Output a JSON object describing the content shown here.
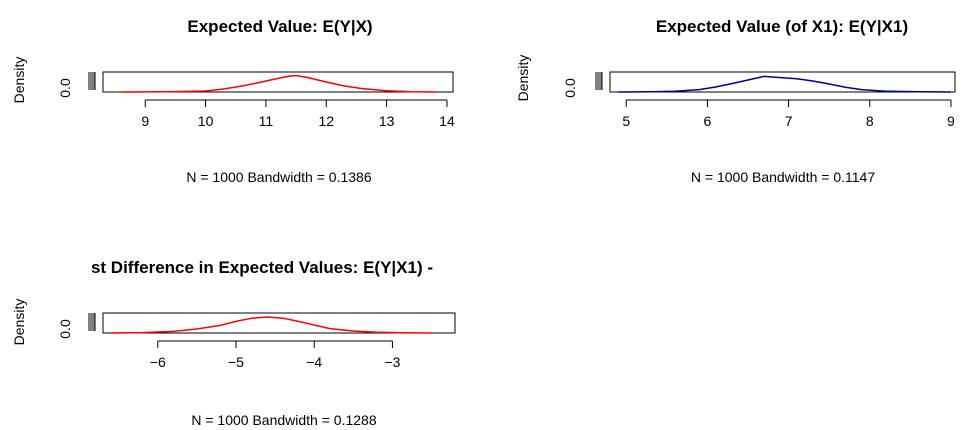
{
  "chart_data": [
    {
      "type": "line",
      "title": "Expected Value: E(Y|X)",
      "xlabel": "N = 1000   Bandwidth = 0.1386",
      "ylabel": "Density",
      "y_ticks": [
        "0.0"
      ],
      "x_ticks": [
        9,
        10,
        11,
        12,
        13,
        14
      ],
      "xlim": [
        8.3,
        14.1
      ],
      "ylim": [
        0,
        1.0
      ],
      "color": "#ff0000",
      "series": [
        {
          "x": [
            8.6,
            9.0,
            9.5,
            10.0,
            10.3,
            10.6,
            10.9,
            11.2,
            11.4,
            11.5,
            11.7,
            12.0,
            12.3,
            12.6,
            13.0,
            13.4,
            13.8
          ],
          "y": [
            0.0,
            0.005,
            0.02,
            0.05,
            0.15,
            0.3,
            0.48,
            0.68,
            0.8,
            0.82,
            0.72,
            0.5,
            0.3,
            0.17,
            0.06,
            0.01,
            0.0
          ]
        }
      ]
    },
    {
      "type": "line",
      "title": "Expected Value (of X1): E(Y|X1)",
      "xlabel": "N = 1000   Bandwidth = 0.1147",
      "ylabel": "Density",
      "y_ticks": [
        "0.0"
      ],
      "x_ticks": [
        5,
        6,
        7,
        8,
        9
      ],
      "xlim": [
        4.8,
        9.05
      ],
      "ylim": [
        0,
        1.0
      ],
      "color": "#00008b",
      "series": [
        {
          "x": [
            4.9,
            5.3,
            5.6,
            5.9,
            6.1,
            6.3,
            6.5,
            6.7,
            6.9,
            7.1,
            7.3,
            7.5,
            7.7,
            7.9,
            8.2,
            8.6,
            9.0
          ],
          "y": [
            0.0,
            0.01,
            0.04,
            0.12,
            0.25,
            0.42,
            0.6,
            0.78,
            0.72,
            0.66,
            0.55,
            0.4,
            0.24,
            0.12,
            0.04,
            0.01,
            0.0
          ]
        }
      ]
    },
    {
      "type": "line",
      "title": "st Difference in Expected Values: E(Y|X1) -",
      "xlabel": "N = 1000   Bandwidth = 0.1288",
      "ylabel": "Density",
      "y_ticks": [
        "0.0"
      ],
      "x_ticks": [
        -6,
        -5,
        -4,
        -3
      ],
      "xlim": [
        -6.7,
        -2.2
      ],
      "ylim": [
        0,
        1.0
      ],
      "color": "#ff0000",
      "series": [
        {
          "x": [
            -6.6,
            -6.2,
            -5.8,
            -5.5,
            -5.2,
            -5.0,
            -4.8,
            -4.6,
            -4.4,
            -4.2,
            -4.0,
            -3.8,
            -3.5,
            -3.2,
            -2.9,
            -2.5
          ],
          "y": [
            0.0,
            0.02,
            0.08,
            0.2,
            0.38,
            0.58,
            0.74,
            0.8,
            0.74,
            0.58,
            0.4,
            0.22,
            0.1,
            0.04,
            0.01,
            0.0
          ]
        }
      ]
    }
  ]
}
